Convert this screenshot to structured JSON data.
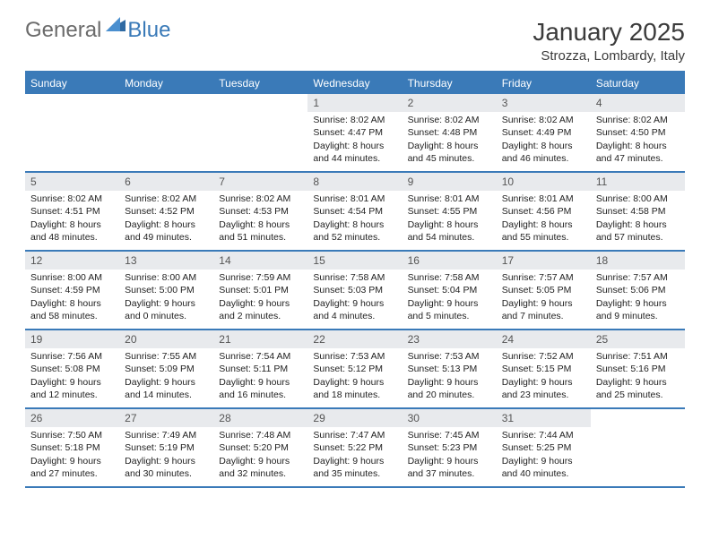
{
  "logo": {
    "general": "General",
    "blue": "Blue"
  },
  "title": "January 2025",
  "location": "Strozza, Lombardy, Italy",
  "colors": {
    "accent": "#3a7ab8",
    "header_bg": "#3a7ab8",
    "daynum_bg": "#e8eaed",
    "text": "#333333",
    "logo_gray": "#6b6b6b"
  },
  "day_names": [
    "Sunday",
    "Monday",
    "Tuesday",
    "Wednesday",
    "Thursday",
    "Friday",
    "Saturday"
  ],
  "weeks": [
    [
      null,
      null,
      null,
      {
        "n": "1",
        "sr": "8:02 AM",
        "ss": "4:47 PM",
        "dl": "8 hours and 44 minutes."
      },
      {
        "n": "2",
        "sr": "8:02 AM",
        "ss": "4:48 PM",
        "dl": "8 hours and 45 minutes."
      },
      {
        "n": "3",
        "sr": "8:02 AM",
        "ss": "4:49 PM",
        "dl": "8 hours and 46 minutes."
      },
      {
        "n": "4",
        "sr": "8:02 AM",
        "ss": "4:50 PM",
        "dl": "8 hours and 47 minutes."
      }
    ],
    [
      {
        "n": "5",
        "sr": "8:02 AM",
        "ss": "4:51 PM",
        "dl": "8 hours and 48 minutes."
      },
      {
        "n": "6",
        "sr": "8:02 AM",
        "ss": "4:52 PM",
        "dl": "8 hours and 49 minutes."
      },
      {
        "n": "7",
        "sr": "8:02 AM",
        "ss": "4:53 PM",
        "dl": "8 hours and 51 minutes."
      },
      {
        "n": "8",
        "sr": "8:01 AM",
        "ss": "4:54 PM",
        "dl": "8 hours and 52 minutes."
      },
      {
        "n": "9",
        "sr": "8:01 AM",
        "ss": "4:55 PM",
        "dl": "8 hours and 54 minutes."
      },
      {
        "n": "10",
        "sr": "8:01 AM",
        "ss": "4:56 PM",
        "dl": "8 hours and 55 minutes."
      },
      {
        "n": "11",
        "sr": "8:00 AM",
        "ss": "4:58 PM",
        "dl": "8 hours and 57 minutes."
      }
    ],
    [
      {
        "n": "12",
        "sr": "8:00 AM",
        "ss": "4:59 PM",
        "dl": "8 hours and 58 minutes."
      },
      {
        "n": "13",
        "sr": "8:00 AM",
        "ss": "5:00 PM",
        "dl": "9 hours and 0 minutes."
      },
      {
        "n": "14",
        "sr": "7:59 AM",
        "ss": "5:01 PM",
        "dl": "9 hours and 2 minutes."
      },
      {
        "n": "15",
        "sr": "7:58 AM",
        "ss": "5:03 PM",
        "dl": "9 hours and 4 minutes."
      },
      {
        "n": "16",
        "sr": "7:58 AM",
        "ss": "5:04 PM",
        "dl": "9 hours and 5 minutes."
      },
      {
        "n": "17",
        "sr": "7:57 AM",
        "ss": "5:05 PM",
        "dl": "9 hours and 7 minutes."
      },
      {
        "n": "18",
        "sr": "7:57 AM",
        "ss": "5:06 PM",
        "dl": "9 hours and 9 minutes."
      }
    ],
    [
      {
        "n": "19",
        "sr": "7:56 AM",
        "ss": "5:08 PM",
        "dl": "9 hours and 12 minutes."
      },
      {
        "n": "20",
        "sr": "7:55 AM",
        "ss": "5:09 PM",
        "dl": "9 hours and 14 minutes."
      },
      {
        "n": "21",
        "sr": "7:54 AM",
        "ss": "5:11 PM",
        "dl": "9 hours and 16 minutes."
      },
      {
        "n": "22",
        "sr": "7:53 AM",
        "ss": "5:12 PM",
        "dl": "9 hours and 18 minutes."
      },
      {
        "n": "23",
        "sr": "7:53 AM",
        "ss": "5:13 PM",
        "dl": "9 hours and 20 minutes."
      },
      {
        "n": "24",
        "sr": "7:52 AM",
        "ss": "5:15 PM",
        "dl": "9 hours and 23 minutes."
      },
      {
        "n": "25",
        "sr": "7:51 AM",
        "ss": "5:16 PM",
        "dl": "9 hours and 25 minutes."
      }
    ],
    [
      {
        "n": "26",
        "sr": "7:50 AM",
        "ss": "5:18 PM",
        "dl": "9 hours and 27 minutes."
      },
      {
        "n": "27",
        "sr": "7:49 AM",
        "ss": "5:19 PM",
        "dl": "9 hours and 30 minutes."
      },
      {
        "n": "28",
        "sr": "7:48 AM",
        "ss": "5:20 PM",
        "dl": "9 hours and 32 minutes."
      },
      {
        "n": "29",
        "sr": "7:47 AM",
        "ss": "5:22 PM",
        "dl": "9 hours and 35 minutes."
      },
      {
        "n": "30",
        "sr": "7:45 AM",
        "ss": "5:23 PM",
        "dl": "9 hours and 37 minutes."
      },
      {
        "n": "31",
        "sr": "7:44 AM",
        "ss": "5:25 PM",
        "dl": "9 hours and 40 minutes."
      },
      null
    ]
  ],
  "labels": {
    "sunrise": "Sunrise:",
    "sunset": "Sunset:",
    "daylight": "Daylight:"
  }
}
